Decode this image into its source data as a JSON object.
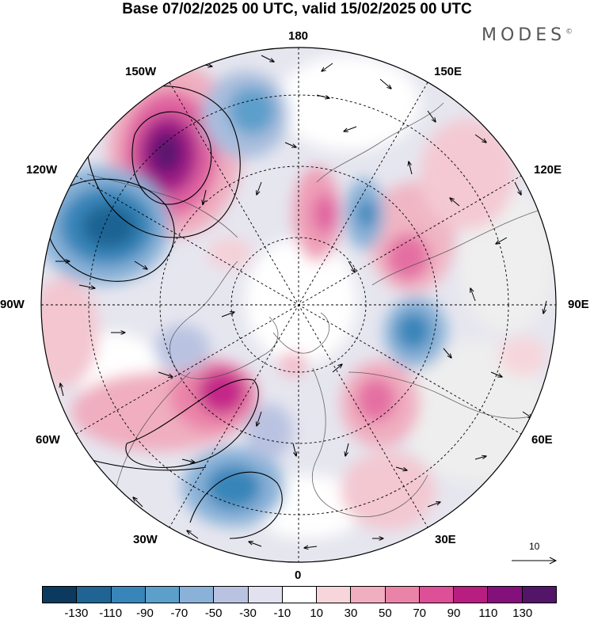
{
  "title": "Base 07/02/2025 00 UTC, valid 15/02/2025 00 UTC",
  "brand": "MODES",
  "brand_mark": "©",
  "longitude_labels": {
    "top": "180",
    "top_right": "150E",
    "upper_right": "120E",
    "right": "90E",
    "lower_right": "60E",
    "bottom_right": "30E",
    "bottom": "0",
    "bottom_left": "30W",
    "lower_left": "60W",
    "left": "90W",
    "upper_left": "120W",
    "top_left": "150W"
  },
  "reference_vector": "10",
  "colorbar": {
    "colors": [
      "#0b3a5e",
      "#1f6493",
      "#3785b9",
      "#5d9fcb",
      "#8ab2d8",
      "#b9c3e1",
      "#e1e1ef",
      "#ffffff",
      "#f6d6db",
      "#f0aec0",
      "#ea83a8",
      "#dd4f96",
      "#b71e80",
      "#84117b",
      "#531568"
    ],
    "labels": [
      "-130",
      "-110",
      "-90",
      "-70",
      "-50",
      "-30",
      "-10",
      "10",
      "30",
      "50",
      "70",
      "90",
      "110",
      "130"
    ]
  }
}
